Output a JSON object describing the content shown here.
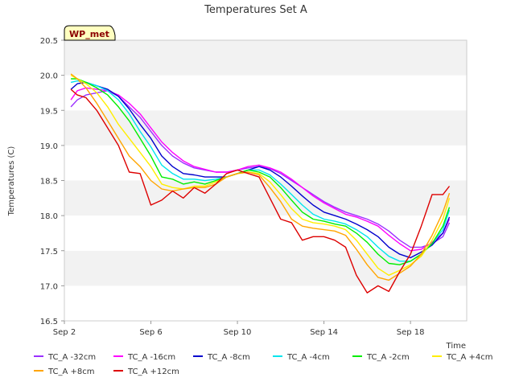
{
  "chart_data": {
    "type": "line",
    "title": "Temperatures Set A",
    "xlabel": "Time",
    "ylabel": "Temperatures (C)",
    "badge": "WP_met",
    "xlim": [
      0,
      18.6
    ],
    "ylim": [
      16.5,
      20.5
    ],
    "x_ticks": [
      {
        "x": 0,
        "label": "Sep 2"
      },
      {
        "x": 4,
        "label": "Sep 6"
      },
      {
        "x": 8,
        "label": "Sep 10"
      },
      {
        "x": 12,
        "label": "Sep 14"
      },
      {
        "x": 16,
        "label": "Sep 18"
      }
    ],
    "y_ticks": [
      16.5,
      17.0,
      17.5,
      18.0,
      18.5,
      19.0,
      19.5,
      20.0,
      20.5
    ],
    "grid": "horizontal-bands",
    "legend_placement": "bottom",
    "series": [
      {
        "name": "TC_A -32cm",
        "color": "#9b30ff",
        "x": [
          0.3,
          0.6,
          1.0,
          1.5,
          2.0,
          2.5,
          3.0,
          3.5,
          4.0,
          4.5,
          5.0,
          5.5,
          6.0,
          6.5,
          7.0,
          7.5,
          8.0,
          8.5,
          9.0,
          9.5,
          10.0,
          10.5,
          11.0,
          11.5,
          12.0,
          12.5,
          13.0,
          13.5,
          14.0,
          14.5,
          15.0,
          15.5,
          16.0,
          16.5,
          17.0,
          17.5,
          17.8
        ],
        "y": [
          19.55,
          19.65,
          19.72,
          19.75,
          19.78,
          19.7,
          19.55,
          19.4,
          19.2,
          19.0,
          18.85,
          18.75,
          18.68,
          18.65,
          18.62,
          18.62,
          18.65,
          18.68,
          18.7,
          18.67,
          18.6,
          18.5,
          18.4,
          18.3,
          18.2,
          18.12,
          18.05,
          18.0,
          17.95,
          17.88,
          17.78,
          17.65,
          17.55,
          17.55,
          17.6,
          17.7,
          17.9
        ]
      },
      {
        "name": "TC_A -16cm",
        "color": "#ff00ff",
        "x": [
          0.3,
          0.6,
          1.0,
          1.5,
          2.0,
          2.5,
          3.0,
          3.5,
          4.0,
          4.5,
          5.0,
          5.5,
          6.0,
          6.5,
          7.0,
          7.5,
          8.0,
          8.5,
          9.0,
          9.5,
          10.0,
          10.5,
          11.0,
          11.5,
          12.0,
          12.5,
          13.0,
          13.5,
          14.0,
          14.5,
          15.0,
          15.5,
          16.0,
          16.5,
          17.0,
          17.5,
          17.8
        ],
        "y": [
          19.65,
          19.78,
          19.82,
          19.8,
          19.78,
          19.72,
          19.6,
          19.45,
          19.25,
          19.05,
          18.9,
          18.78,
          18.7,
          18.66,
          18.62,
          18.62,
          18.65,
          18.7,
          18.72,
          18.68,
          18.62,
          18.52,
          18.4,
          18.28,
          18.18,
          18.1,
          18.02,
          17.98,
          17.92,
          17.85,
          17.72,
          17.6,
          17.5,
          17.52,
          17.62,
          17.75,
          17.95
        ]
      },
      {
        "name": "TC_A -8cm",
        "color": "#0000cd",
        "x": [
          0.3,
          0.6,
          1.0,
          1.5,
          2.0,
          2.5,
          3.0,
          3.5,
          4.0,
          4.5,
          5.0,
          5.5,
          6.0,
          6.5,
          7.0,
          7.5,
          8.0,
          8.5,
          9.0,
          9.5,
          10.0,
          10.5,
          11.0,
          11.5,
          12.0,
          12.5,
          13.0,
          13.5,
          14.0,
          14.5,
          15.0,
          15.5,
          16.0,
          16.5,
          17.0,
          17.5,
          17.8
        ],
        "y": [
          19.8,
          19.88,
          19.9,
          19.85,
          19.8,
          19.7,
          19.52,
          19.3,
          19.1,
          18.85,
          18.7,
          18.6,
          18.58,
          18.55,
          18.55,
          18.55,
          18.6,
          18.65,
          18.7,
          18.65,
          18.55,
          18.42,
          18.28,
          18.15,
          18.05,
          18.0,
          17.95,
          17.88,
          17.8,
          17.7,
          17.55,
          17.45,
          17.4,
          17.48,
          17.58,
          17.75,
          17.98
        ]
      },
      {
        "name": "TC_A -4cm",
        "color": "#00e5ee",
        "x": [
          0.3,
          0.6,
          1.0,
          1.5,
          2.0,
          2.5,
          3.0,
          3.5,
          4.0,
          4.5,
          5.0,
          5.5,
          6.0,
          6.5,
          7.0,
          7.5,
          8.0,
          8.5,
          9.0,
          9.5,
          10.0,
          10.5,
          11.0,
          11.5,
          12.0,
          12.5,
          13.0,
          13.5,
          14.0,
          14.5,
          15.0,
          15.5,
          16.0,
          16.5,
          17.0,
          17.5,
          17.8
        ],
        "y": [
          19.9,
          19.92,
          19.9,
          19.85,
          19.78,
          19.65,
          19.45,
          19.2,
          18.98,
          18.72,
          18.6,
          18.52,
          18.52,
          18.5,
          18.52,
          18.55,
          18.6,
          18.65,
          18.65,
          18.58,
          18.45,
          18.3,
          18.15,
          18.02,
          17.95,
          17.92,
          17.88,
          17.8,
          17.7,
          17.55,
          17.42,
          17.35,
          17.35,
          17.45,
          17.6,
          17.8,
          18.08
        ]
      },
      {
        "name": "TC_A -2cm",
        "color": "#00ee00",
        "x": [
          0.3,
          0.6,
          1.0,
          1.5,
          2.0,
          2.5,
          3.0,
          3.5,
          4.0,
          4.5,
          5.0,
          5.5,
          6.0,
          6.5,
          7.0,
          7.5,
          8.0,
          8.5,
          9.0,
          9.5,
          10.0,
          10.5,
          11.0,
          11.5,
          12.0,
          12.5,
          13.0,
          13.5,
          14.0,
          14.5,
          15.0,
          15.5,
          16.0,
          16.5,
          17.0,
          17.5,
          17.8
        ],
        "y": [
          19.95,
          19.95,
          19.9,
          19.82,
          19.72,
          19.55,
          19.35,
          19.1,
          18.85,
          18.55,
          18.52,
          18.45,
          18.48,
          18.45,
          18.5,
          18.55,
          18.6,
          18.65,
          18.62,
          18.55,
          18.4,
          18.22,
          18.05,
          17.95,
          17.92,
          17.88,
          17.85,
          17.75,
          17.62,
          17.45,
          17.32,
          17.3,
          17.35,
          17.45,
          17.6,
          17.85,
          18.12
        ]
      },
      {
        "name": "TC_A +4cm",
        "color": "#ffee00",
        "x": [
          0.3,
          0.6,
          1.0,
          1.5,
          2.0,
          2.5,
          3.0,
          3.5,
          4.0,
          4.5,
          5.0,
          5.5,
          6.0,
          6.5,
          7.0,
          7.5,
          8.0,
          8.5,
          9.0,
          9.5,
          10.0,
          10.5,
          11.0,
          11.5,
          12.0,
          12.5,
          13.0,
          13.5,
          14.0,
          14.5,
          15.0,
          15.5,
          16.0,
          16.5,
          17.0,
          17.5,
          17.8
        ],
        "y": [
          20.0,
          19.95,
          19.88,
          19.75,
          19.55,
          19.3,
          19.1,
          18.9,
          18.7,
          18.45,
          18.4,
          18.38,
          18.42,
          18.42,
          18.48,
          18.55,
          18.6,
          18.62,
          18.6,
          18.48,
          18.3,
          18.1,
          17.95,
          17.9,
          17.88,
          17.85,
          17.8,
          17.65,
          17.45,
          17.25,
          17.15,
          17.22,
          17.3,
          17.42,
          17.65,
          17.95,
          18.25
        ]
      },
      {
        "name": "TC_A +8cm",
        "color": "#ffa500",
        "x": [
          0.3,
          0.6,
          1.0,
          1.5,
          2.0,
          2.5,
          3.0,
          3.5,
          4.0,
          4.5,
          5.0,
          5.5,
          6.0,
          6.5,
          7.0,
          7.5,
          8.0,
          8.5,
          9.0,
          9.5,
          10.0,
          10.5,
          11.0,
          11.5,
          12.0,
          12.5,
          13.0,
          13.5,
          14.0,
          14.5,
          15.0,
          15.5,
          16.0,
          16.5,
          17.0,
          17.5,
          17.8
        ],
        "y": [
          20.02,
          19.95,
          19.82,
          19.6,
          19.35,
          19.1,
          18.85,
          18.7,
          18.5,
          18.38,
          18.35,
          18.38,
          18.4,
          18.4,
          18.45,
          18.55,
          18.6,
          18.62,
          18.58,
          18.4,
          18.2,
          17.95,
          17.85,
          17.82,
          17.8,
          17.78,
          17.72,
          17.52,
          17.3,
          17.12,
          17.08,
          17.18,
          17.28,
          17.45,
          17.72,
          18.05,
          18.32
        ]
      },
      {
        "name": "TC_A +12cm",
        "color": "#dd0000",
        "x": [
          0.3,
          0.6,
          1.0,
          1.5,
          2.0,
          2.5,
          3.0,
          3.5,
          4.0,
          4.5,
          5.0,
          5.5,
          6.0,
          6.5,
          7.0,
          7.5,
          8.0,
          8.5,
          9.0,
          9.5,
          10.0,
          10.5,
          11.0,
          11.5,
          12.0,
          12.5,
          13.0,
          13.5,
          14.0,
          14.5,
          15.0,
          15.5,
          16.0,
          16.5,
          17.0,
          17.5,
          17.8
        ],
        "y": [
          19.8,
          19.72,
          19.68,
          19.5,
          19.25,
          19.0,
          18.62,
          18.6,
          18.15,
          18.22,
          18.35,
          18.25,
          18.4,
          18.32,
          18.45,
          18.6,
          18.65,
          18.6,
          18.55,
          18.25,
          17.95,
          17.9,
          17.65,
          17.7,
          17.7,
          17.65,
          17.55,
          17.15,
          16.9,
          17.0,
          16.92,
          17.2,
          17.45,
          17.85,
          18.3,
          18.3,
          18.42
        ]
      }
    ]
  }
}
